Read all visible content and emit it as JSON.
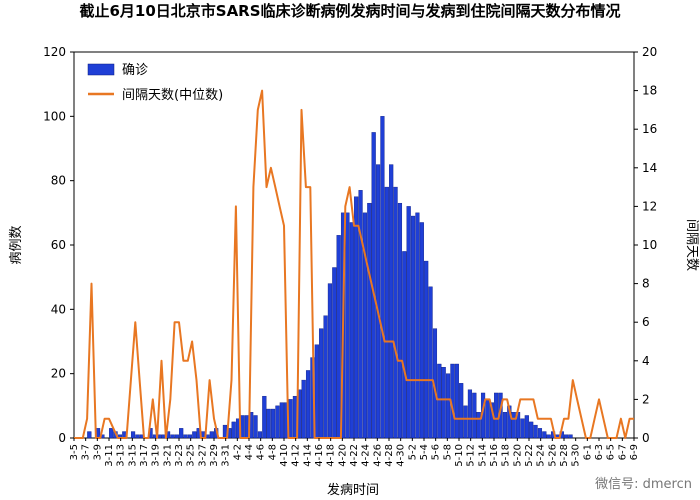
{
  "chart_data": {
    "type": "bar",
    "title": "截止6月10日北京市SARS临床诊断病例发病时间与发病到住院间隔天数分布情况",
    "xlabel": "发病时间",
    "ylabel_left": "病例数",
    "ylabel_right": "间隔天数",
    "ylim_left": [
      0,
      120
    ],
    "ylim_right": [
      0,
      20
    ],
    "yticks_left": [
      "0",
      "20",
      "40",
      "60",
      "80",
      "100",
      "120"
    ],
    "yticks_right": [
      "0",
      "2",
      "4",
      "6",
      "8",
      "10",
      "12",
      "14",
      "16",
      "18",
      "20"
    ],
    "grid": false,
    "legend_position": "top-left",
    "x_tick_labels": [
      "3-5",
      "3-7",
      "3-9",
      "3-11",
      "3-13",
      "3-15",
      "3-17",
      "3-19",
      "3-21",
      "3-23",
      "3-25",
      "3-27",
      "3-29",
      "3-31",
      "4-2",
      "4-4",
      "4-6",
      "4-8",
      "4-10",
      "4-12",
      "4-14",
      "4-16",
      "4-18",
      "4-20",
      "4-22",
      "4-24",
      "4-26",
      "4-28",
      "4-30",
      "5-2",
      "5-4",
      "5-6",
      "5-8",
      "5-10",
      "5-12",
      "5-14",
      "5-16",
      "5-18",
      "5-20",
      "5-22",
      "5-24",
      "5-26",
      "5-28",
      "5-30",
      "6-1",
      "6-3",
      "6-5",
      "6-7",
      "6-9"
    ],
    "colors": {
      "bars": "#1f3fd6",
      "bar_edge": "#0a1a80",
      "line": "#e87722"
    },
    "series": [
      {
        "name": "确诊",
        "type": "bar",
        "axis": "left",
        "values": [
          0,
          0,
          0,
          2,
          0,
          3,
          1,
          0,
          3,
          2,
          1,
          2,
          0,
          2,
          1,
          1,
          0,
          3,
          1,
          1,
          1,
          2,
          1,
          1,
          3,
          1,
          1,
          2,
          3,
          2,
          1,
          2,
          3,
          0,
          4,
          3,
          5,
          6,
          7,
          7,
          8,
          7,
          2,
          13,
          9,
          9,
          10,
          11,
          11,
          12,
          13,
          15,
          18,
          21,
          25,
          29,
          34,
          38,
          48,
          53,
          63,
          70,
          70,
          67,
          75,
          77,
          70,
          73,
          95,
          85,
          100,
          78,
          85,
          78,
          73,
          58,
          72,
          69,
          70,
          67,
          55,
          47,
          34,
          23,
          22,
          20,
          23,
          23,
          17,
          10,
          15,
          14,
          8,
          14,
          12,
          11,
          14,
          14,
          8,
          10,
          8,
          8,
          6,
          7,
          5,
          4,
          3,
          2,
          1,
          2,
          1,
          2,
          1,
          1,
          0,
          0,
          0,
          0,
          0,
          0,
          0,
          0,
          0,
          0,
          0,
          0,
          0,
          0
        ]
      },
      {
        "name": "间隔天数(中位数)",
        "type": "line",
        "axis": "right",
        "values": [
          0,
          0,
          0,
          1,
          8,
          0,
          0,
          1,
          1,
          0.5,
          0,
          0,
          0,
          3,
          6,
          3,
          0,
          0,
          2,
          0,
          4,
          0,
          2,
          6,
          6,
          4,
          4,
          5,
          3,
          0,
          0,
          3,
          1,
          0,
          0,
          0,
          3,
          12,
          0,
          0,
          0,
          13,
          17,
          18,
          13,
          14,
          13,
          12,
          11,
          0,
          0,
          0,
          17,
          13,
          13,
          0,
          0,
          0,
          0,
          0,
          0,
          0,
          12,
          13,
          11,
          11,
          10,
          9,
          8,
          7,
          6,
          5,
          5,
          5,
          4,
          4,
          3,
          3,
          3,
          3,
          3,
          3,
          3,
          2,
          2,
          2,
          2,
          1,
          1,
          1,
          1,
          1,
          1,
          1,
          2,
          2,
          1,
          1,
          2,
          2,
          1,
          1,
          2,
          2,
          2,
          2,
          1,
          1,
          1,
          1,
          0,
          0,
          1,
          1,
          3,
          2,
          1,
          0,
          0,
          1,
          2,
          1,
          0,
          0,
          0,
          1,
          0,
          1,
          1
        ]
      }
    ]
  },
  "watermark": "微信号: dmercn"
}
